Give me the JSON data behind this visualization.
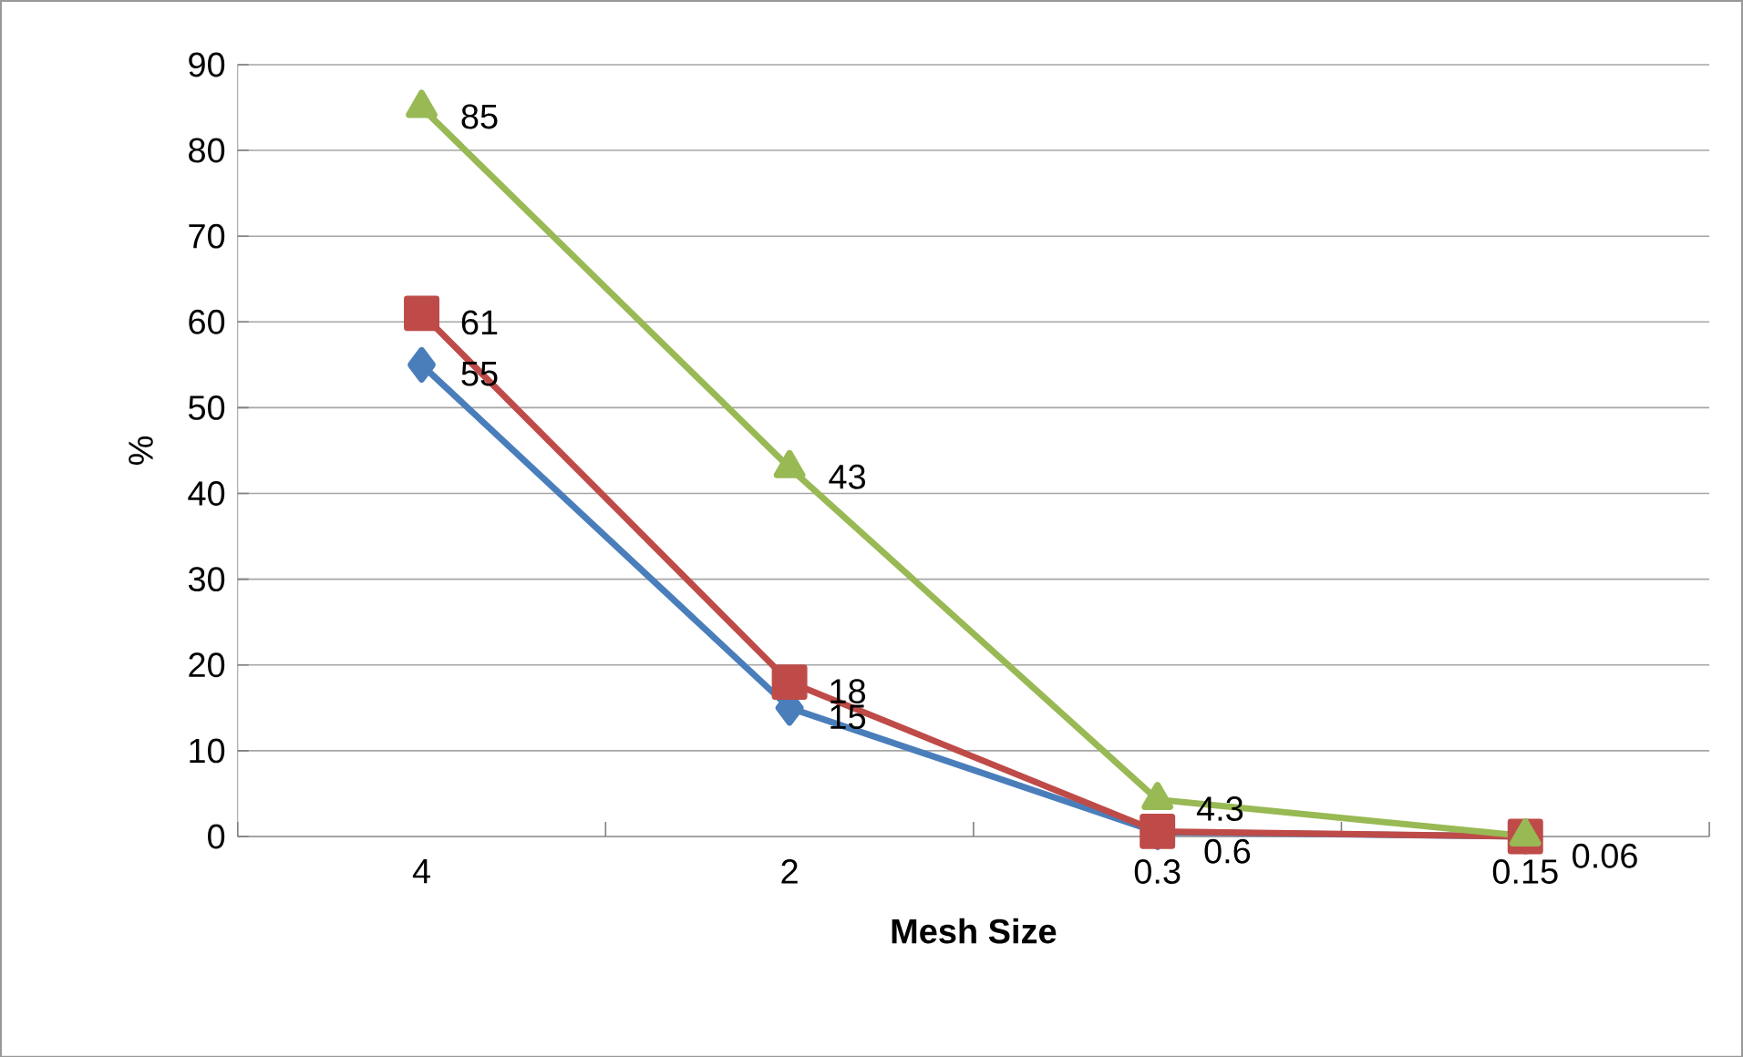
{
  "chart_data": {
    "type": "line",
    "xlabel": "Mesh Size",
    "ylabel": "%",
    "categories": [
      "4",
      "2",
      "0.3",
      "0.15"
    ],
    "series": [
      {
        "color": "#4a7ebb",
        "marker": "diamond",
        "values": [
          55,
          15,
          0.5,
          0
        ],
        "value_labels": [
          "55",
          "15",
          null,
          null
        ]
      },
      {
        "color": "#be4b48",
        "marker": "square",
        "values": [
          61,
          18,
          0.6,
          0
        ],
        "value_labels": [
          "61",
          "18",
          "0.6",
          null
        ]
      },
      {
        "color": "#98b954",
        "marker": "triangle",
        "values": [
          85,
          43,
          4.3,
          0.06
        ],
        "value_labels": [
          "85",
          "43",
          "4.3",
          "0.06"
        ]
      }
    ],
    "ylim": [
      0,
      90
    ],
    "yticks": [
      0,
      10,
      20,
      30,
      40,
      50,
      60,
      70,
      80,
      90
    ],
    "grid": "y"
  }
}
